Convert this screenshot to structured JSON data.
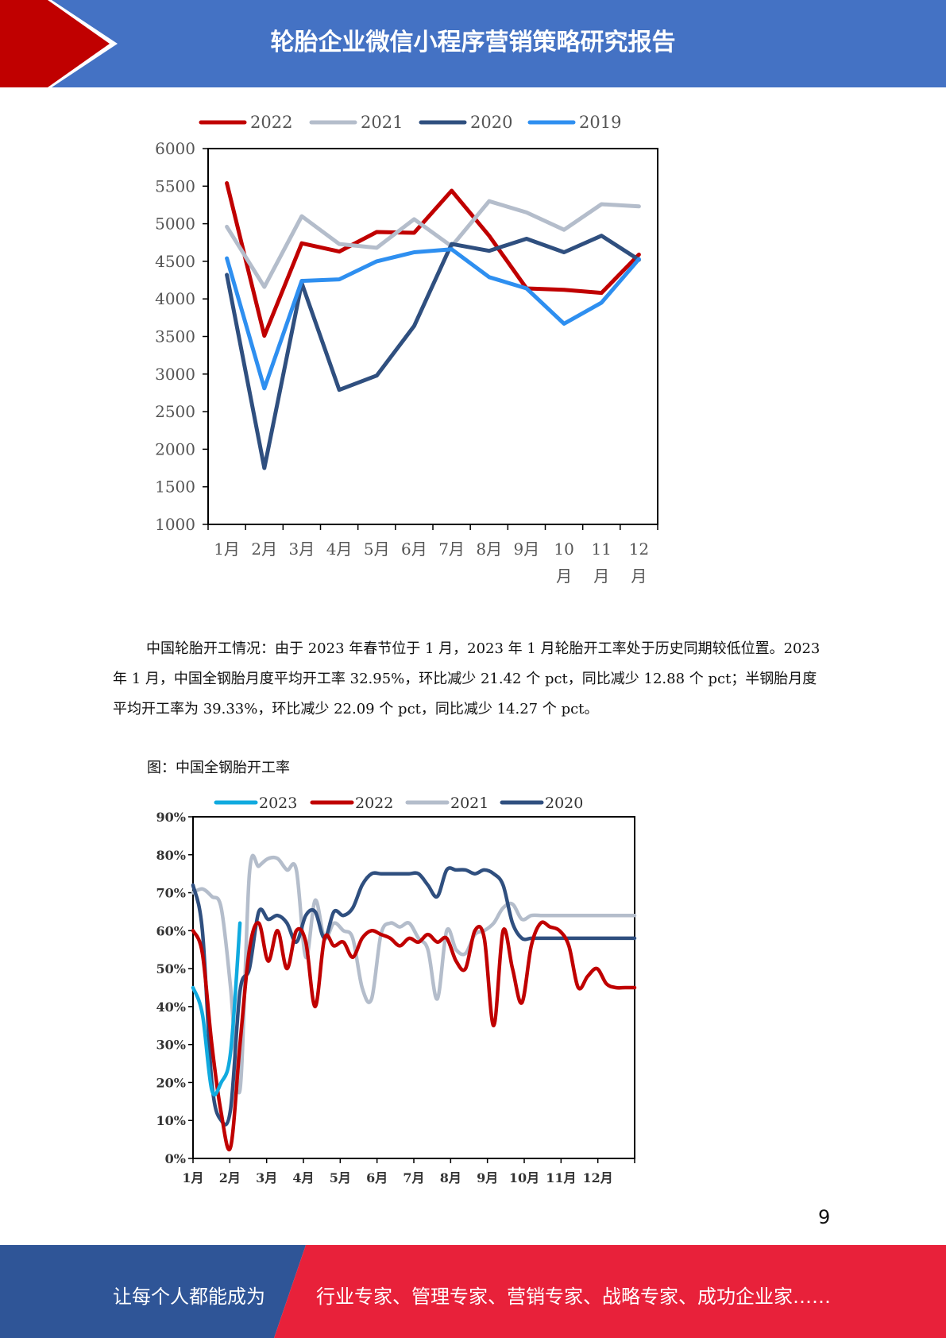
{
  "header": {
    "title": "轮胎企业微信小程序营销策略研究报告"
  },
  "colors": {
    "header_blue": "#4472c4",
    "header_red": "#c00000",
    "footer_blue": "#2f5597",
    "footer_red": "#e8213a"
  },
  "chart_data": [
    {
      "type": "line",
      "categories": [
        "1月",
        "2月",
        "3月",
        "4月",
        "5月",
        "6月",
        "7月",
        "8月",
        "9月",
        "10月",
        "11月",
        "12月"
      ],
      "category_label_lines": [
        [
          "1月"
        ],
        [
          "2月"
        ],
        [
          "3月"
        ],
        [
          "4月"
        ],
        [
          "5月"
        ],
        [
          "6月"
        ],
        [
          "7月"
        ],
        [
          "8月"
        ],
        [
          "9月"
        ],
        [
          "10",
          "月"
        ],
        [
          "11",
          "月"
        ],
        [
          "12",
          "月"
        ]
      ],
      "ylim": [
        1000,
        6000
      ],
      "yticks": [
        "1000",
        "1500",
        "2000",
        "2500",
        "3000",
        "3500",
        "4000",
        "4500",
        "5000",
        "5500",
        "6000"
      ],
      "legend_position": "top",
      "series": [
        {
          "name": "2022",
          "color": "#c00000",
          "values": [
            5540,
            3510,
            4740,
            4630,
            4890,
            4880,
            5440,
            4840,
            4140,
            4120,
            4080,
            4590
          ]
        },
        {
          "name": "2021",
          "color": "#b4bdcb",
          "values": [
            4960,
            4160,
            5100,
            4730,
            4680,
            5060,
            4700,
            5300,
            5150,
            4920,
            5260,
            5230
          ]
        },
        {
          "name": "2020",
          "color": "#2f4f7f",
          "values": [
            4320,
            1750,
            4210,
            2790,
            2980,
            3640,
            4730,
            4640,
            4800,
            4620,
            4840,
            4520
          ]
        },
        {
          "name": "2019",
          "color": "#2e8ff0",
          "values": [
            4540,
            2810,
            4240,
            4260,
            4500,
            4620,
            4660,
            4290,
            4140,
            3670,
            3950,
            4530
          ]
        }
      ]
    },
    {
      "type": "line",
      "title": "图：中国全钢胎开工率",
      "categories": [
        "1月",
        "2月",
        "3月",
        "4月",
        "5月",
        "6月",
        "7月",
        "8月",
        "9月",
        "10月",
        "11月",
        "12月"
      ],
      "ylim": [
        0,
        90
      ],
      "yticks": [
        "0%",
        "10%",
        "20%",
        "30%",
        "40%",
        "50%",
        "60%",
        "70%",
        "80%",
        "90%"
      ],
      "x_unit": "week (1-48)",
      "legend_position": "top",
      "series": [
        {
          "name": "2023",
          "color": "#10aadf",
          "x": [
            1,
            2,
            3,
            4,
            5,
            6
          ],
          "values": [
            45,
            38,
            18,
            20,
            28,
            62
          ]
        },
        {
          "name": "2022",
          "color": "#c00000",
          "x": [
            1,
            2,
            3,
            4,
            5,
            6,
            7,
            8,
            9,
            10,
            11,
            12,
            13,
            14,
            15,
            16,
            17,
            18,
            19,
            20,
            21,
            22,
            23,
            24,
            25,
            26,
            27,
            28,
            29,
            30,
            31,
            32,
            33,
            34,
            35,
            36,
            37,
            38,
            39,
            40,
            41,
            42,
            43,
            44,
            45,
            46,
            47,
            48
          ],
          "values": [
            60,
            54,
            30,
            12,
            3,
            30,
            55,
            62,
            52,
            60,
            50,
            60,
            57,
            40,
            58,
            56,
            57,
            53,
            58,
            60,
            59,
            58,
            56,
            58,
            57,
            59,
            57,
            58,
            52,
            50,
            60,
            58,
            35,
            60,
            50,
            41,
            56,
            62,
            61,
            60,
            56,
            45,
            48,
            50,
            46,
            45,
            45,
            45
          ]
        },
        {
          "name": "2021",
          "color": "#b4bdcb",
          "x": [
            1,
            2,
            3,
            4,
            5,
            6,
            7,
            8,
            9,
            10,
            11,
            12,
            13,
            14,
            15,
            16,
            17,
            18,
            19,
            20,
            21,
            22,
            23,
            24,
            25,
            26,
            27,
            28,
            29,
            30,
            31,
            32,
            33,
            34,
            35,
            36,
            37,
            38,
            39,
            40,
            41,
            42,
            43,
            44,
            45,
            46,
            47,
            48
          ],
          "values": [
            70,
            71,
            69,
            66,
            45,
            18,
            75,
            77,
            79,
            79,
            76,
            76,
            53,
            68,
            58,
            62,
            60,
            58,
            45,
            42,
            59,
            62,
            61,
            62,
            58,
            55,
            42,
            60,
            55,
            54,
            59,
            60,
            62,
            66,
            67,
            63,
            64,
            64,
            64,
            64,
            64,
            64,
            64,
            64,
            64,
            64,
            64,
            64
          ]
        },
        {
          "name": "2020",
          "color": "#2f4f7f",
          "x": [
            1,
            2,
            3,
            4,
            5,
            6,
            7,
            8,
            9,
            10,
            11,
            12,
            13,
            14,
            15,
            16,
            17,
            18,
            19,
            20,
            21,
            22,
            23,
            24,
            25,
            26,
            27,
            28,
            29,
            30,
            31,
            32,
            33,
            34,
            35,
            36,
            37,
            38,
            39,
            40,
            41,
            42,
            43,
            44,
            45,
            46,
            47,
            48
          ],
          "values": [
            72,
            60,
            20,
            10,
            13,
            44,
            50,
            65,
            63,
            64,
            62,
            57,
            64,
            65,
            58,
            65,
            64,
            66,
            72,
            75,
            75,
            75,
            75,
            75,
            75,
            72,
            69,
            76,
            76,
            76,
            75,
            76,
            75,
            72,
            62,
            58,
            58,
            58,
            58,
            58,
            58,
            58,
            58,
            58,
            58,
            58,
            58,
            58
          ]
        }
      ]
    }
  ],
  "body": {
    "paragraph": "中国轮胎开工情况：由于 2023 年春节位于 1 月，2023 年 1 月轮胎开工率处于历史同期较低位置。2023 年 1 月，中国全钢胎月度平均开工率 32.95%，环比减少 21.42 个 pct，同比减少 12.88 个 pct；半钢胎月度平均开工率为 39.33%，环比减少 22.09 个 pct，同比减少 14.27 个 pct。"
  },
  "page_number": "9",
  "footer": {
    "left_text": "让每个人都能成为",
    "right_text": "行业专家、管理专家、营销专家、战略专家、成功企业家……"
  }
}
